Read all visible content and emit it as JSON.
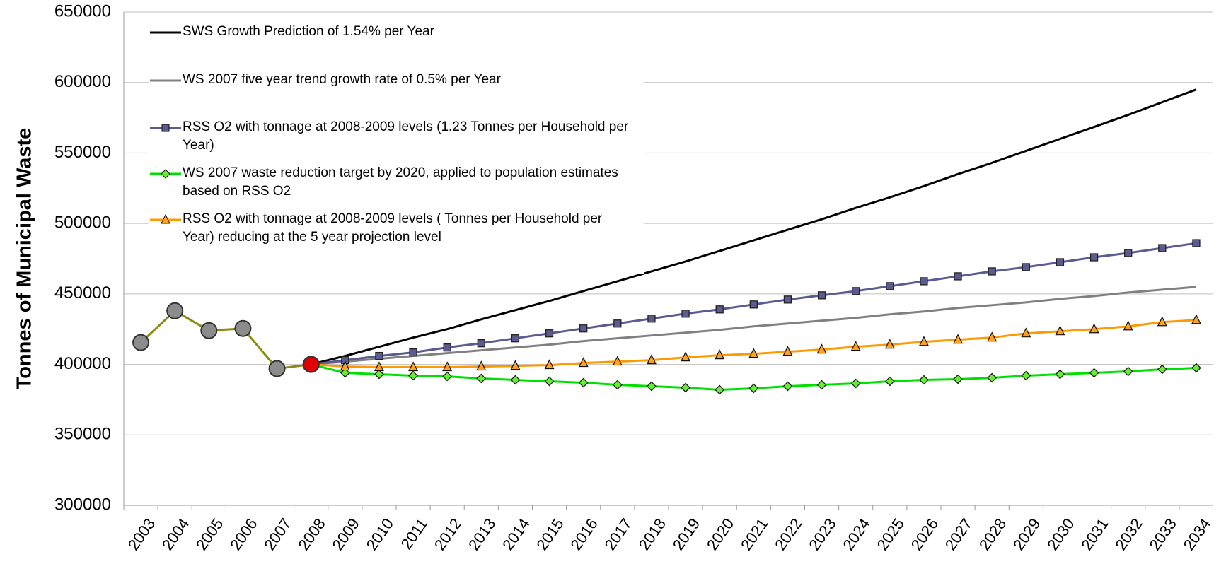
{
  "chart_data": {
    "type": "line",
    "y_label": "Tonnes of Municipal Waste",
    "categories": [
      "2003",
      "2004",
      "2005",
      "2006",
      "2007",
      "2008",
      "2009",
      "2010",
      "2011",
      "2012",
      "2013",
      "2014",
      "2015",
      "2016",
      "2017",
      "2018",
      "2019",
      "2020",
      "2021",
      "2022",
      "2023",
      "2024",
      "2025",
      "2026",
      "2027",
      "2028",
      "2029",
      "2030",
      "2031",
      "2032",
      "2033",
      "2034"
    ],
    "ylim": [
      300000,
      650000
    ],
    "yticks": [
      300000,
      350000,
      400000,
      450000,
      500000,
      550000,
      600000,
      650000
    ],
    "grid": true,
    "legend": "upper left",
    "series": [
      {
        "name": "SWS Growth Prediction of 1.54% per Year",
        "color": "#000000",
        "marker": "none",
        "values": [
          null,
          null,
          null,
          null,
          null,
          400000,
          406000,
          412500,
          419000,
          425000,
          432000,
          438500,
          445000,
          452000,
          459000,
          466000,
          473000,
          480500,
          488000,
          495500,
          503000,
          511000,
          518500,
          526500,
          535000,
          543000,
          551500,
          560000,
          568500,
          577000,
          586000,
          595000
        ]
      },
      {
        "name": "WS 2007 five year trend growth rate of 0.5% per Year",
        "color": "#808080",
        "marker": "none",
        "values": [
          null,
          null,
          null,
          null,
          null,
          400000,
          402000,
          404000,
          406000,
          408000,
          410000,
          412000,
          414000,
          416500,
          418500,
          420500,
          422500,
          424500,
          427000,
          429000,
          431000,
          433000,
          435500,
          437500,
          440000,
          442000,
          444000,
          446500,
          448500,
          451000,
          453000,
          455000
        ]
      },
      {
        "name": "RSS O2 with tonnage at 2008-2009 levels (1.23 Tonnes per Household per Year)",
        "color": "#5b5b8f",
        "marker": "square",
        "marker_color": "#5b5b8f",
        "values": [
          null,
          null,
          null,
          null,
          null,
          400000,
          403000,
          406000,
          408500,
          412000,
          415000,
          418500,
          422000,
          425500,
          429000,
          432500,
          436000,
          439000,
          442500,
          446000,
          449000,
          452000,
          455500,
          459000,
          462500,
          466000,
          469000,
          472500,
          476000,
          479000,
          482500,
          486000
        ]
      },
      {
        "name": "WS 2007 waste reduction target by 2020, applied to population estimates based on RSS O2",
        "color": "#00e000",
        "marker": "diamond",
        "marker_color": "#66ee33",
        "values": [
          null,
          null,
          null,
          null,
          null,
          400000,
          394000,
          393000,
          392000,
          391500,
          390000,
          389000,
          388000,
          387000,
          385500,
          384500,
          383500,
          382000,
          383000,
          384500,
          385500,
          386500,
          388000,
          389000,
          389500,
          390500,
          392000,
          393000,
          394000,
          395000,
          396500,
          397500
        ]
      },
      {
        "name": "RSS O2 with tonnage at 2008-2009 levels ( Tonnes per Household per Year) reducing at the 5 year projection level",
        "color": "#ff9900",
        "marker": "triangle",
        "marker_color": "#ffa020",
        "values": [
          null,
          null,
          null,
          null,
          null,
          400000,
          398500,
          398000,
          398000,
          398000,
          398500,
          399000,
          399500,
          401000,
          402000,
          403000,
          405000,
          406500,
          407500,
          409000,
          410500,
          412500,
          414000,
          416000,
          417500,
          419000,
          422000,
          423500,
          425000,
          427000,
          430000,
          431500
        ]
      },
      {
        "color": "#8a8a10",
        "marker": "circle",
        "marker_color": "#8c8c8c",
        "values": [
          415500,
          438000,
          424000,
          425500,
          397000,
          400000,
          null,
          null,
          null,
          null,
          null,
          null,
          null,
          null,
          null,
          null,
          null,
          null,
          null,
          null,
          null,
          null,
          null,
          null,
          null,
          null,
          null,
          null,
          null,
          null,
          null,
          null
        ]
      },
      {
        "color": "#8a8a10",
        "marker": "circle",
        "marker_color": "#e00000",
        "values": [
          null,
          null,
          null,
          null,
          null,
          400000,
          null,
          null,
          null,
          null,
          null,
          null,
          null,
          null,
          null,
          null,
          null,
          null,
          null,
          null,
          null,
          null,
          null,
          null,
          null,
          null,
          null,
          null,
          null,
          null,
          null,
          null
        ]
      }
    ]
  }
}
